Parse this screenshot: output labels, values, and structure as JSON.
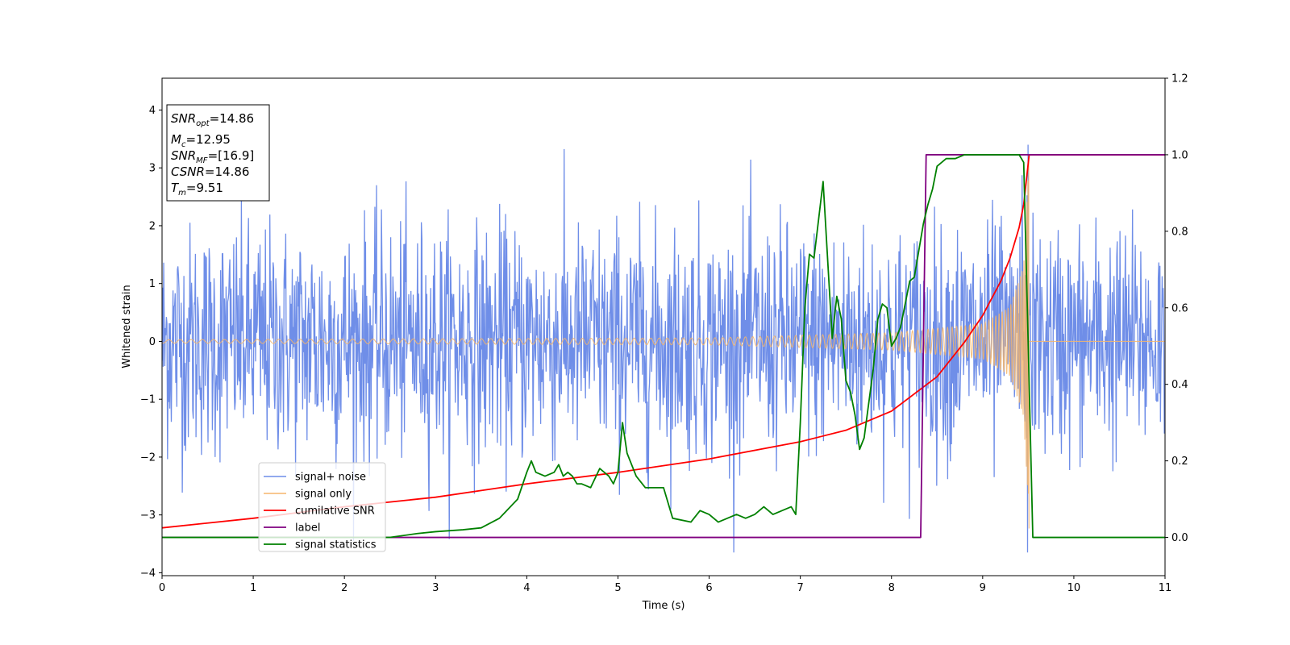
{
  "chart_data": {
    "type": "line",
    "title": "",
    "xlabel": "Time (s)",
    "ylabel": "Whitened strain",
    "xlim": [
      0,
      11
    ],
    "ylim_left": [
      -4.05,
      4.55
    ],
    "ylim_right": [
      -0.1,
      1.2
    ],
    "x_ticks": [
      0,
      1,
      2,
      3,
      4,
      5,
      6,
      7,
      8,
      9,
      10,
      11
    ],
    "y_ticks_left": [
      -4,
      -3,
      -2,
      -1,
      0,
      1,
      2,
      3,
      4
    ],
    "y_ticks_right": [
      0.0,
      0.2,
      0.4,
      0.6,
      0.8,
      1.0,
      1.2
    ],
    "grid": false,
    "legend_position": "lower-left",
    "annotation": {
      "lines": [
        {
          "main": "SNR",
          "sub": "opt",
          "value": "=14.86"
        },
        {
          "main": "M",
          "sub": "c",
          "value": "=12.95"
        },
        {
          "main": "SNR",
          "sub": "MF",
          "value": "=[16.9]"
        },
        {
          "main": "CSNR",
          "sub": "",
          "value": "=14.86"
        },
        {
          "main": "T",
          "sub": "m",
          "value": "=9.51"
        }
      ]
    },
    "series": [
      {
        "name": "signal+ noise",
        "axis": "left",
        "color": "#6f8ee8",
        "style": "noise",
        "sample_dt": 0.006,
        "noise_sigma": 1.0,
        "data_range": [
          -3.65,
          3.4
        ]
      },
      {
        "name": "signal only",
        "axis": "left",
        "color": "#f5b56b",
        "style": "chirp",
        "t_merge": 9.51,
        "amplitude_at": [
          [
            0,
            0.03
          ],
          [
            6,
            0.06
          ],
          [
            8,
            0.15
          ],
          [
            9,
            0.3
          ],
          [
            9.3,
            0.6
          ],
          [
            9.45,
            1.3
          ],
          [
            9.51,
            3.3
          ]
        ]
      },
      {
        "name": "cumilative SNR",
        "axis": "right",
        "color": "#ff0000",
        "x": [
          0,
          1,
          2,
          3,
          4,
          5,
          6,
          7,
          7.5,
          8,
          8.5,
          8.8,
          9.0,
          9.2,
          9.3,
          9.4,
          9.45,
          9.51,
          9.52,
          11
        ],
        "values": [
          0.025,
          0.05,
          0.08,
          0.105,
          0.14,
          0.17,
          0.205,
          0.25,
          0.28,
          0.33,
          0.42,
          0.51,
          0.58,
          0.67,
          0.73,
          0.81,
          0.87,
          1.0,
          1.0,
          1.0
        ]
      },
      {
        "name": "label",
        "axis": "right",
        "color": "#800080",
        "x": [
          0,
          8.32,
          8.38,
          9.51,
          9.52,
          11
        ],
        "values": [
          0.0,
          0.0,
          1.0,
          1.0,
          1.0,
          1.0
        ]
      },
      {
        "name": "signal statistics",
        "axis": "right",
        "color": "#008000",
        "x": [
          0,
          0.5,
          1,
          1.5,
          2,
          2.5,
          2.8,
          3.0,
          3.3,
          3.5,
          3.7,
          3.9,
          4.0,
          4.05,
          4.1,
          4.2,
          4.3,
          4.35,
          4.4,
          4.45,
          4.5,
          4.55,
          4.6,
          4.7,
          4.8,
          4.9,
          4.95,
          5.0,
          5.05,
          5.1,
          5.2,
          5.3,
          5.4,
          5.5,
          5.6,
          5.8,
          5.9,
          6.0,
          6.1,
          6.3,
          6.4,
          6.5,
          6.6,
          6.7,
          6.8,
          6.9,
          6.95,
          7.0,
          7.05,
          7.1,
          7.15,
          7.25,
          7.35,
          7.4,
          7.45,
          7.5,
          7.55,
          7.6,
          7.65,
          7.7,
          7.8,
          7.85,
          7.9,
          7.95,
          8.0,
          8.05,
          8.1,
          8.2,
          8.25,
          8.3,
          8.35,
          8.4,
          8.45,
          8.5,
          8.6,
          8.7,
          8.8,
          8.9,
          9.0,
          9.1,
          9.2,
          9.3,
          9.4,
          9.45,
          9.5,
          9.55,
          9.6,
          10,
          11
        ],
        "values": [
          0.0,
          0.0,
          0.0,
          0.0,
          0.0,
          0.0,
          0.01,
          0.015,
          0.02,
          0.025,
          0.05,
          0.1,
          0.17,
          0.2,
          0.17,
          0.16,
          0.17,
          0.19,
          0.16,
          0.17,
          0.16,
          0.14,
          0.14,
          0.13,
          0.18,
          0.16,
          0.14,
          0.17,
          0.3,
          0.22,
          0.16,
          0.13,
          0.13,
          0.13,
          0.05,
          0.04,
          0.07,
          0.06,
          0.04,
          0.06,
          0.05,
          0.06,
          0.08,
          0.06,
          0.07,
          0.08,
          0.06,
          0.3,
          0.6,
          0.74,
          0.73,
          0.93,
          0.52,
          0.63,
          0.57,
          0.41,
          0.38,
          0.32,
          0.23,
          0.26,
          0.44,
          0.57,
          0.61,
          0.6,
          0.5,
          0.52,
          0.55,
          0.67,
          0.68,
          0.75,
          0.82,
          0.87,
          0.91,
          0.97,
          0.99,
          0.99,
          1.0,
          1.0,
          1.0,
          1.0,
          1.0,
          1.0,
          1.0,
          0.98,
          0.5,
          0.0,
          0.0,
          0.0,
          0.0
        ]
      }
    ]
  }
}
